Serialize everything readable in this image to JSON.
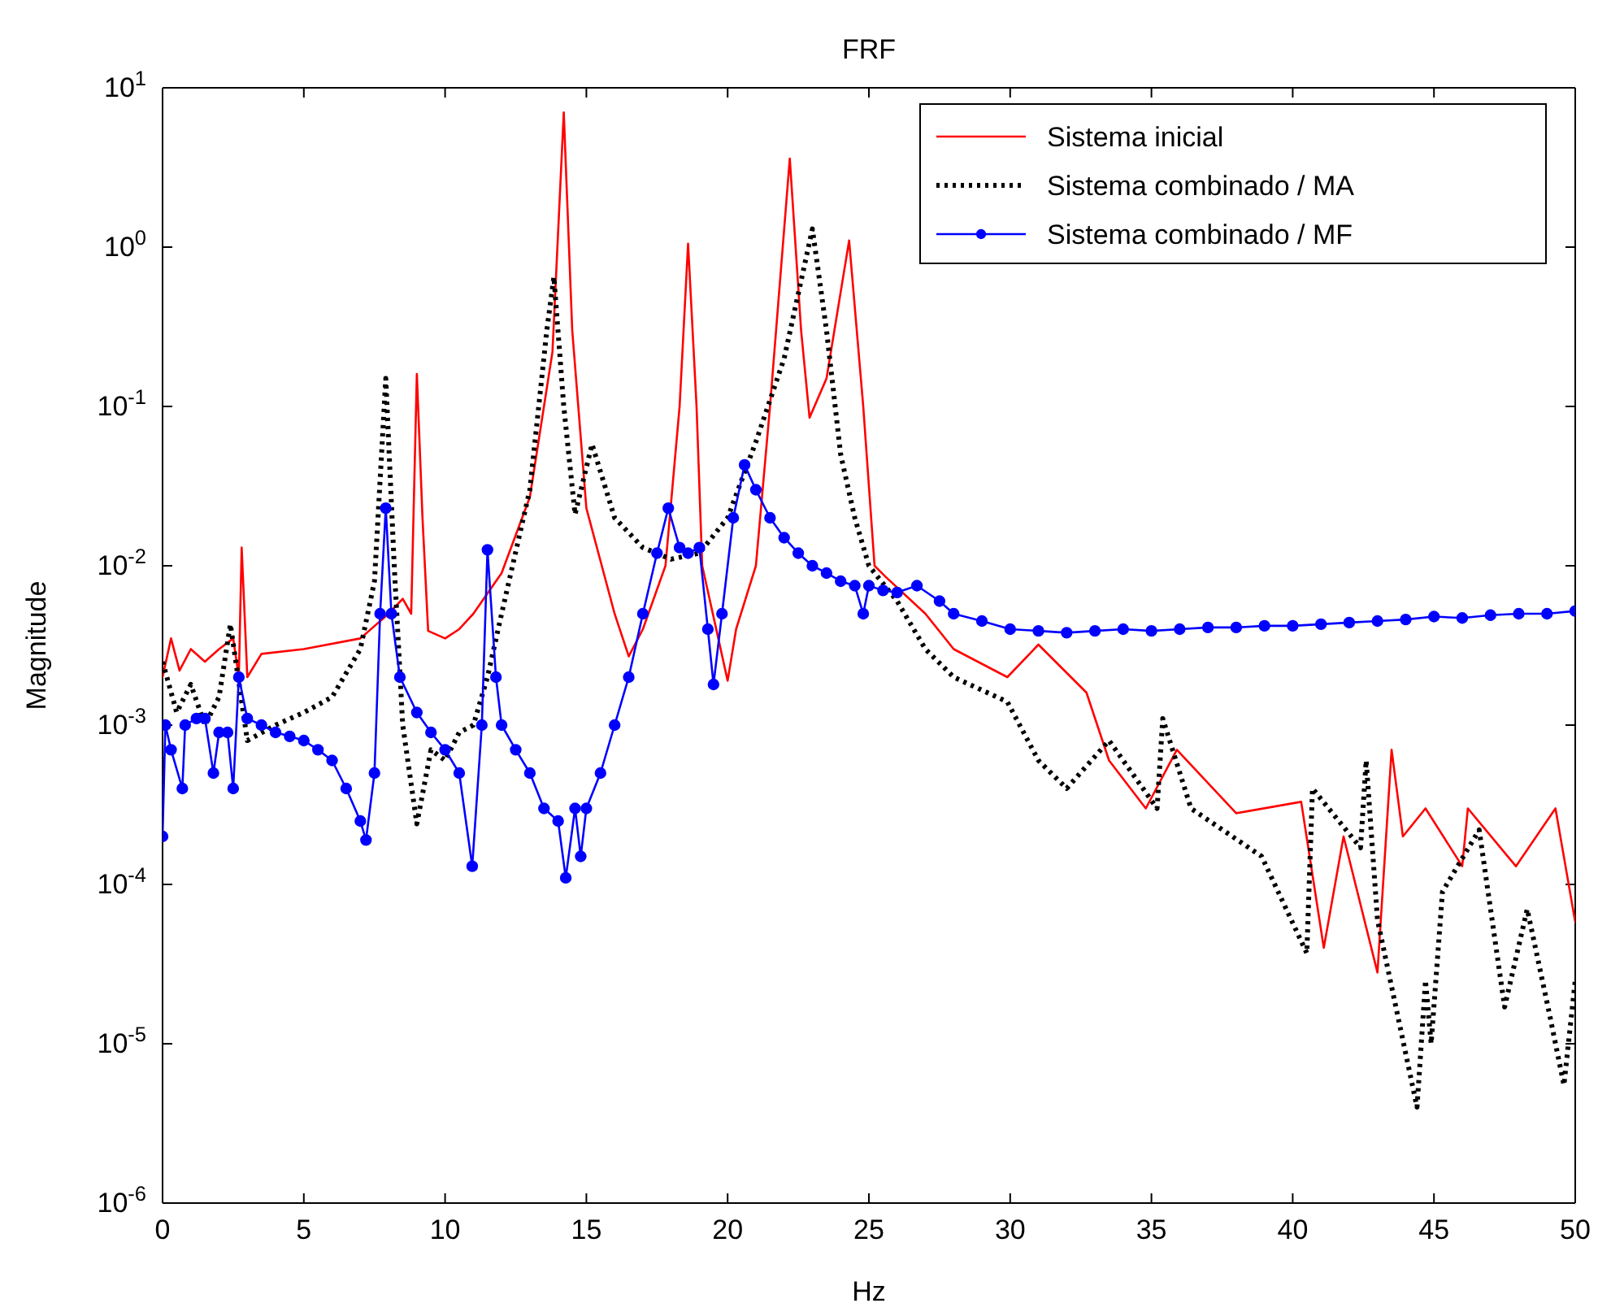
{
  "chart_data": {
    "type": "line",
    "title": "FRF",
    "xlabel": "Hz",
    "ylabel": "Magnitude",
    "log": "y",
    "grid": false,
    "legend": "top right",
    "xlim": [
      0,
      50
    ],
    "xticks": [
      0,
      5,
      10,
      15,
      20,
      25,
      30,
      35,
      40,
      45,
      50
    ],
    "ylim": [
      1e-06,
      10
    ],
    "yticks": [
      {
        "value": 1e-06,
        "label": "10$^{-6}$"
      },
      {
        "value": 1e-05,
        "label": "10$^{-5}$"
      },
      {
        "value": 0.0001,
        "label": "10$^{-4}$"
      },
      {
        "value": 0.001,
        "label": "10$^{-3}$"
      },
      {
        "value": 0.01,
        "label": "10$^{-2}$"
      },
      {
        "value": 0.1,
        "label": "10$^{-1}$"
      },
      {
        "value": 1,
        "label": "10$^{0}$"
      },
      {
        "value": 10,
        "label": "10$^{1}$"
      }
    ],
    "series": [
      {
        "name": "Sistema inicial",
        "color": "#ff0000",
        "line_style": "solid",
        "marker": "none",
        "x": [
          0,
          0.3,
          0.6,
          1,
          1.5,
          2,
          2.5,
          2.7,
          2.8,
          3,
          3.5,
          5,
          7,
          8,
          8.5,
          8.8,
          9,
          9.2,
          9.4,
          10,
          10.5,
          11,
          12,
          13,
          13.8,
          14.2,
          14.5,
          15,
          16,
          16.5,
          17,
          17.8,
          18.3,
          18.6,
          18.9,
          19.1,
          20,
          20.3,
          21,
          21.5,
          22.2,
          22.6,
          22.9,
          23.5,
          24.3,
          24.8,
          25.2,
          25.6,
          27,
          28,
          29.9,
          31,
          32.7,
          33.5,
          34.8,
          35.9,
          38,
          40.3,
          41.1,
          41.8,
          43,
          43.5,
          43.9,
          44.7,
          46,
          46.2,
          47.9,
          49.3,
          50
        ],
        "values": [
          0.002,
          0.0035,
          0.0022,
          0.003,
          0.0025,
          0.003,
          0.0035,
          0.002,
          0.013,
          0.002,
          0.0028,
          0.003,
          0.0035,
          0.005,
          0.0062,
          0.005,
          0.16,
          0.02,
          0.0039,
          0.0035,
          0.004,
          0.005,
          0.009,
          0.027,
          0.22,
          7,
          0.3,
          0.023,
          0.005,
          0.0027,
          0.004,
          0.01,
          0.1,
          1.05,
          0.1,
          0.01,
          0.0019,
          0.004,
          0.01,
          0.1,
          3.6,
          0.3,
          0.085,
          0.15,
          1.1,
          0.1,
          0.01,
          0.0085,
          0.005,
          0.003,
          0.002,
          0.0032,
          0.0016,
          0.0006,
          0.0003,
          0.0007,
          0.00028,
          0.00033,
          4e-05,
          0.0002,
          2.8e-05,
          0.0007,
          0.0002,
          0.0003,
          0.00013,
          0.0003,
          0.00013,
          0.0003,
          5.8e-05
        ]
      },
      {
        "name": "Sistema combinado / MA",
        "color": "#000000",
        "line_style": "dotted",
        "marker": "none",
        "x": [
          0,
          0.5,
          1,
          1.5,
          2,
          2.4,
          3,
          4,
          5,
          6,
          7,
          7.5,
          7.9,
          8.2,
          8.5,
          9,
          9.5,
          10,
          10.5,
          11,
          11.5,
          12,
          13,
          13.6,
          13.85,
          14.2,
          14.6,
          15.2,
          16,
          17,
          18,
          19,
          20,
          21,
          22,
          23,
          23.5,
          24,
          24.5,
          25,
          26,
          27,
          28,
          29.9,
          31,
          32,
          33.5,
          35.2,
          35.4,
          36.4,
          38.9,
          40.5,
          40.7,
          42.4,
          42.6,
          43,
          44.4,
          44.7,
          44.9,
          45.3,
          46.6,
          47.5,
          48.3,
          49.1,
          49.6,
          50
        ],
        "values": [
          0.0025,
          0.0012,
          0.0018,
          0.001,
          0.0015,
          0.0043,
          0.0008,
          0.001,
          0.0012,
          0.0015,
          0.003,
          0.008,
          0.15,
          0.01,
          0.001,
          0.00024,
          0.0007,
          0.0006,
          0.0009,
          0.001,
          0.002,
          0.005,
          0.03,
          0.3,
          0.65,
          0.1,
          0.021,
          0.058,
          0.02,
          0.013,
          0.011,
          0.012,
          0.02,
          0.06,
          0.2,
          1.3,
          0.3,
          0.05,
          0.02,
          0.01,
          0.006,
          0.003,
          0.002,
          0.0014,
          0.0006,
          0.0004,
          0.0008,
          0.0003,
          0.0011,
          0.0003,
          0.00015,
          3.7e-05,
          0.0004,
          0.00017,
          0.0006,
          6e-05,
          4e-06,
          2.5e-05,
          1e-05,
          9e-05,
          0.00022,
          1.7e-05,
          7e-05,
          1.5e-05,
          5.5e-06,
          2.5e-05
        ]
      },
      {
        "name": "Sistema combinado / MF",
        "color": "#0000ff",
        "line_style": "solid",
        "marker": "circle",
        "x": [
          0,
          0.1,
          0.3,
          0.7,
          0.8,
          1.2,
          1.5,
          1.8,
          2,
          2.3,
          2.5,
          2.7,
          3,
          3.5,
          4,
          4.5,
          5,
          5.5,
          6,
          6.5,
          7,
          7.2,
          7.5,
          7.7,
          7.9,
          8.1,
          8.4,
          9,
          9.5,
          10,
          10.5,
          10.96,
          11.3,
          11.5,
          11.8,
          12,
          12.5,
          13,
          13.5,
          14,
          14.27,
          14.6,
          14.8,
          15,
          15.5,
          16,
          16.5,
          17,
          17.5,
          17.9,
          18.3,
          18.6,
          19,
          19.3,
          19.5,
          19.8,
          20.2,
          20.6,
          21,
          21.5,
          22,
          22.5,
          23,
          23.5,
          24,
          24.5,
          24.8,
          25,
          25.5,
          26,
          26.7,
          27.5,
          28,
          29,
          30,
          31,
          32,
          33,
          34,
          35,
          36,
          37,
          38,
          39,
          40,
          41,
          42,
          43,
          44,
          45,
          46,
          47,
          48,
          49,
          50
        ],
        "values": [
          0.0002,
          0.001,
          0.0007,
          0.0004,
          0.001,
          0.0011,
          0.0011,
          0.0005,
          0.0009,
          0.0009,
          0.0004,
          0.002,
          0.0011,
          0.001,
          0.0009,
          0.00085,
          0.0008,
          0.0007,
          0.0006,
          0.0004,
          0.00025,
          0.00019,
          0.0005,
          0.005,
          0.023,
          0.005,
          0.002,
          0.0012,
          0.0009,
          0.0007,
          0.0005,
          0.00013,
          0.001,
          0.0126,
          0.002,
          0.001,
          0.0007,
          0.0005,
          0.0003,
          0.00025,
          0.00011,
          0.0003,
          0.00015,
          0.0003,
          0.0005,
          0.001,
          0.002,
          0.005,
          0.012,
          0.023,
          0.013,
          0.012,
          0.013,
          0.004,
          0.0018,
          0.005,
          0.02,
          0.043,
          0.03,
          0.02,
          0.015,
          0.012,
          0.01,
          0.009,
          0.008,
          0.0075,
          0.005,
          0.0075,
          0.007,
          0.0068,
          0.0075,
          0.006,
          0.005,
          0.0045,
          0.004,
          0.0039,
          0.0038,
          0.0039,
          0.004,
          0.0039,
          0.004,
          0.0041,
          0.0041,
          0.0042,
          0.0042,
          0.0043,
          0.0044,
          0.0045,
          0.0046,
          0.0048,
          0.0047,
          0.0049,
          0.005,
          0.005,
          0.0052
        ]
      }
    ]
  }
}
